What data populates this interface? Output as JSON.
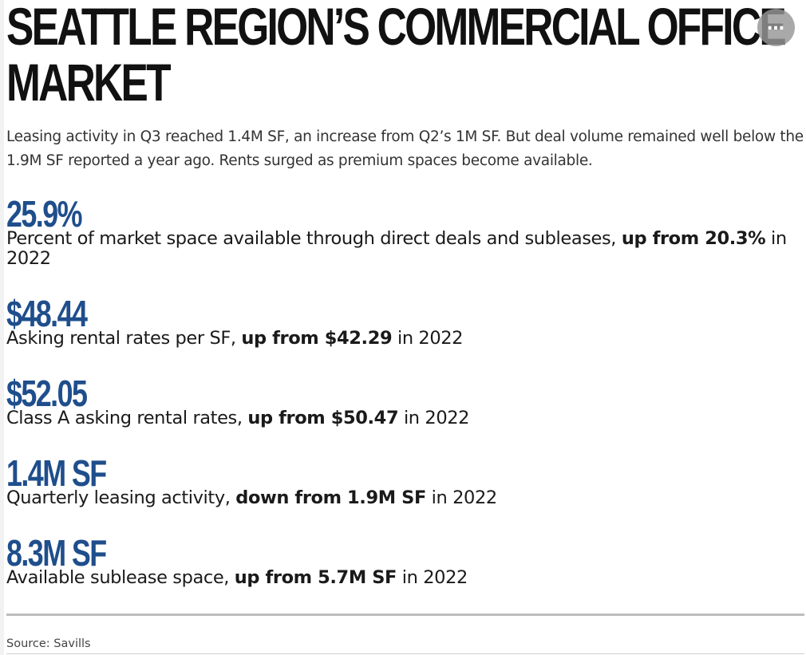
{
  "header": {
    "title": "SEATTLE REGION’S COMMERCIAL OFFICE MARKET",
    "more_icon": "ellipsis-icon"
  },
  "intro": "Leasing activity in Q3 reached 1.4M SF, an increase from Q2’s 1M SF. But deal volume remained well below the 1.9M SF reported a year ago. Rents surged as premium spaces become available.",
  "stats": [
    {
      "value": "25.9%",
      "desc_pre": "Percent of market space available through direct deals and subleases, ",
      "desc_bold": "up from 20.3%",
      "desc_post": " in 2022"
    },
    {
      "value": "$48.44",
      "desc_pre": "Asking rental rates per SF, ",
      "desc_bold": "up from $42.29",
      "desc_post": " in 2022"
    },
    {
      "value": "$52.05",
      "desc_pre": "Class A asking rental rates, ",
      "desc_bold": "up from $50.47",
      "desc_post": "  in 2022"
    },
    {
      "value": "1.4M SF",
      "desc_pre": "Quarterly leasing activity, ",
      "desc_bold": "down from 1.9M SF",
      "desc_post": " in 2022"
    },
    {
      "value": "8.3M SF",
      "desc_pre": "Available sublease space, ",
      "desc_bold": "up from 5.7M SF",
      "desc_post": " in 2022"
    }
  ],
  "source": "Source: Savills",
  "colors": {
    "accent": "#1f4e8c",
    "title": "#111111",
    "rule": "#bdbdbd"
  }
}
